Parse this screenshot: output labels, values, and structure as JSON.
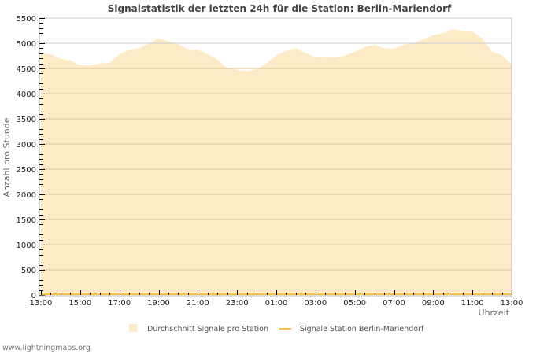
{
  "chart_data": {
    "type": "area",
    "title": "Signalstatistik der letzten 24h für die Station: Berlin-Mariendorf",
    "xlabel": "Uhrzeit",
    "ylabel": "Anzahl pro Stunde",
    "ylim": [
      0,
      5500
    ],
    "yticks": [
      0,
      500,
      1000,
      1500,
      2000,
      2500,
      3000,
      3500,
      4000,
      4500,
      5000,
      5500
    ],
    "xticks": [
      "13:00",
      "15:00",
      "17:00",
      "19:00",
      "21:00",
      "23:00",
      "01:00",
      "03:00",
      "05:00",
      "07:00",
      "09:00",
      "11:00",
      "13:00"
    ],
    "grid": true,
    "legend_position": "bottom",
    "x_hours": [
      0,
      0.5,
      1,
      1.5,
      2,
      2.5,
      3,
      3.5,
      4,
      4.5,
      5,
      5.5,
      6,
      6.5,
      7,
      7.5,
      8,
      8.5,
      9,
      9.5,
      10,
      10.5,
      11,
      11.5,
      12,
      12.5,
      13,
      13.5,
      14,
      14.5,
      15,
      15.5,
      16,
      16.5,
      17,
      17.5,
      18,
      18.5,
      19,
      19.5,
      20,
      20.5,
      21,
      21.5,
      22,
      22.5,
      23,
      23.5,
      24
    ],
    "series": [
      {
        "name": "Durchschnitt Signale pro Station",
        "style": "area",
        "color": "#fdebc8",
        "values": [
          4800,
          4780,
          4690,
          4660,
          4560,
          4560,
          4600,
          4610,
          4780,
          4870,
          4900,
          4990,
          5100,
          5040,
          4980,
          4880,
          4870,
          4780,
          4680,
          4500,
          4470,
          4450,
          4480,
          4600,
          4760,
          4850,
          4900,
          4800,
          4720,
          4740,
          4720,
          4750,
          4830,
          4920,
          4970,
          4900,
          4890,
          4970,
          5000,
          5080,
          5160,
          5200,
          5280,
          5240,
          5230,
          5100,
          4830,
          4760,
          4580
        ]
      },
      {
        "name": "Signale Station Berlin-Mariendorf",
        "style": "line",
        "color": "#f5c242",
        "values": [
          0,
          0,
          0,
          0,
          0,
          0,
          0,
          0,
          0,
          0,
          0,
          0,
          0,
          0,
          0,
          0,
          0,
          0,
          0,
          0,
          0,
          0,
          0,
          0,
          0,
          0,
          0,
          0,
          0,
          0,
          0,
          0,
          0,
          0,
          0,
          0,
          0,
          0,
          0,
          0,
          0,
          0,
          0,
          0,
          0,
          0,
          0,
          0,
          0
        ]
      }
    ]
  },
  "legend": {
    "items": [
      {
        "label": "Durchschnitt Signale pro Station",
        "swatch": "area",
        "color": "#fdebc8"
      },
      {
        "label": "Signale Station Berlin-Mariendorf",
        "swatch": "line",
        "color": "#f5c242"
      }
    ]
  },
  "footer": {
    "text": "www.lightningmaps.org"
  },
  "colors": {
    "grid": "#cccccc",
    "grid_on_area": "#d9c39a",
    "axis": "#bbbbbb",
    "tick": "#000000"
  }
}
